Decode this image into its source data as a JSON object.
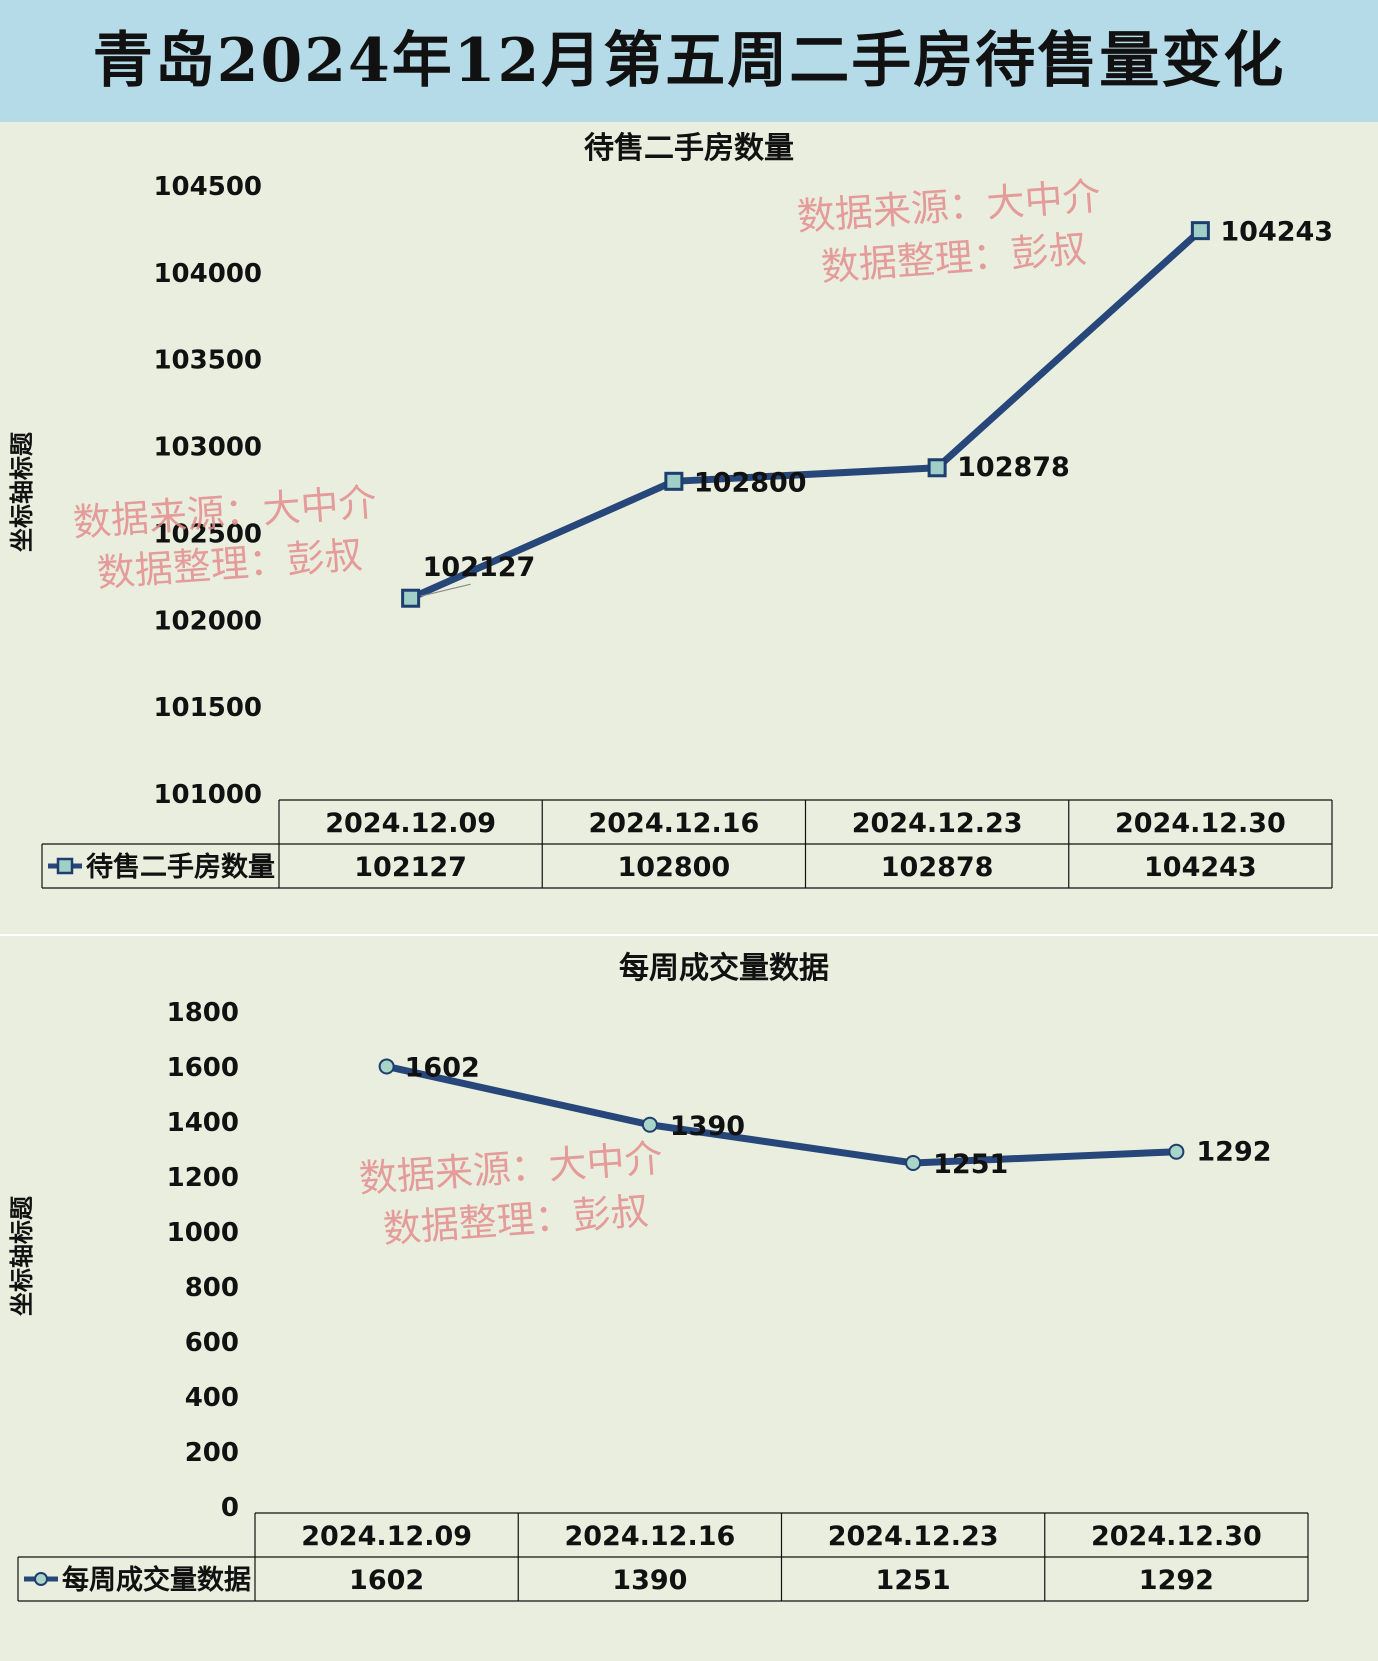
{
  "page_title": "青岛2024年12月第五周二手房待售量变化",
  "chart_data": [
    {
      "type": "line",
      "title": "待售二手房数量",
      "ylabel": "坐标轴标题",
      "categories": [
        "2024.12.09",
        "2024.12.16",
        "2024.12.23",
        "2024.12.30"
      ],
      "yticks": [
        "101000",
        "101500",
        "102000",
        "102500",
        "103000",
        "103500",
        "104000",
        "104500"
      ],
      "ylim": [
        101000,
        104500
      ],
      "series": [
        {
          "name": "待售二手房数量",
          "values": [
            102127,
            102800,
            102878,
            104243
          ],
          "color": "#27477a",
          "marker": "square"
        }
      ],
      "data_labels": [
        "102127",
        "102800",
        "102878",
        "104243"
      ],
      "table_values": [
        "102127",
        "102800",
        "102878",
        "104243"
      ],
      "watermarks": [
        {
          "line1": "数据来源：大中介",
          "line2": "数据整理：彭叔"
        },
        {
          "line1": "数据来源：大中介",
          "line2": "数据整理：彭叔"
        }
      ]
    },
    {
      "type": "line",
      "title": "每周成交量数据",
      "ylabel": "坐标轴标题",
      "categories": [
        "2024.12.09",
        "2024.12.16",
        "2024.12.23",
        "2024.12.30"
      ],
      "yticks": [
        "0",
        "200",
        "400",
        "600",
        "800",
        "1000",
        "1200",
        "1400",
        "1600",
        "1800"
      ],
      "ylim": [
        0,
        1800
      ],
      "series": [
        {
          "name": "每周成交量数据",
          "values": [
            1602,
            1390,
            1251,
            1292
          ],
          "color": "#27477a",
          "marker": "circle"
        }
      ],
      "data_labels": [
        "1602",
        "1390",
        "1251",
        "1292"
      ],
      "table_values": [
        "1602",
        "1390",
        "1251",
        "1292"
      ],
      "watermarks": [
        {
          "line1": "数据来源：大中介",
          "line2": "数据整理：彭叔"
        }
      ]
    }
  ]
}
